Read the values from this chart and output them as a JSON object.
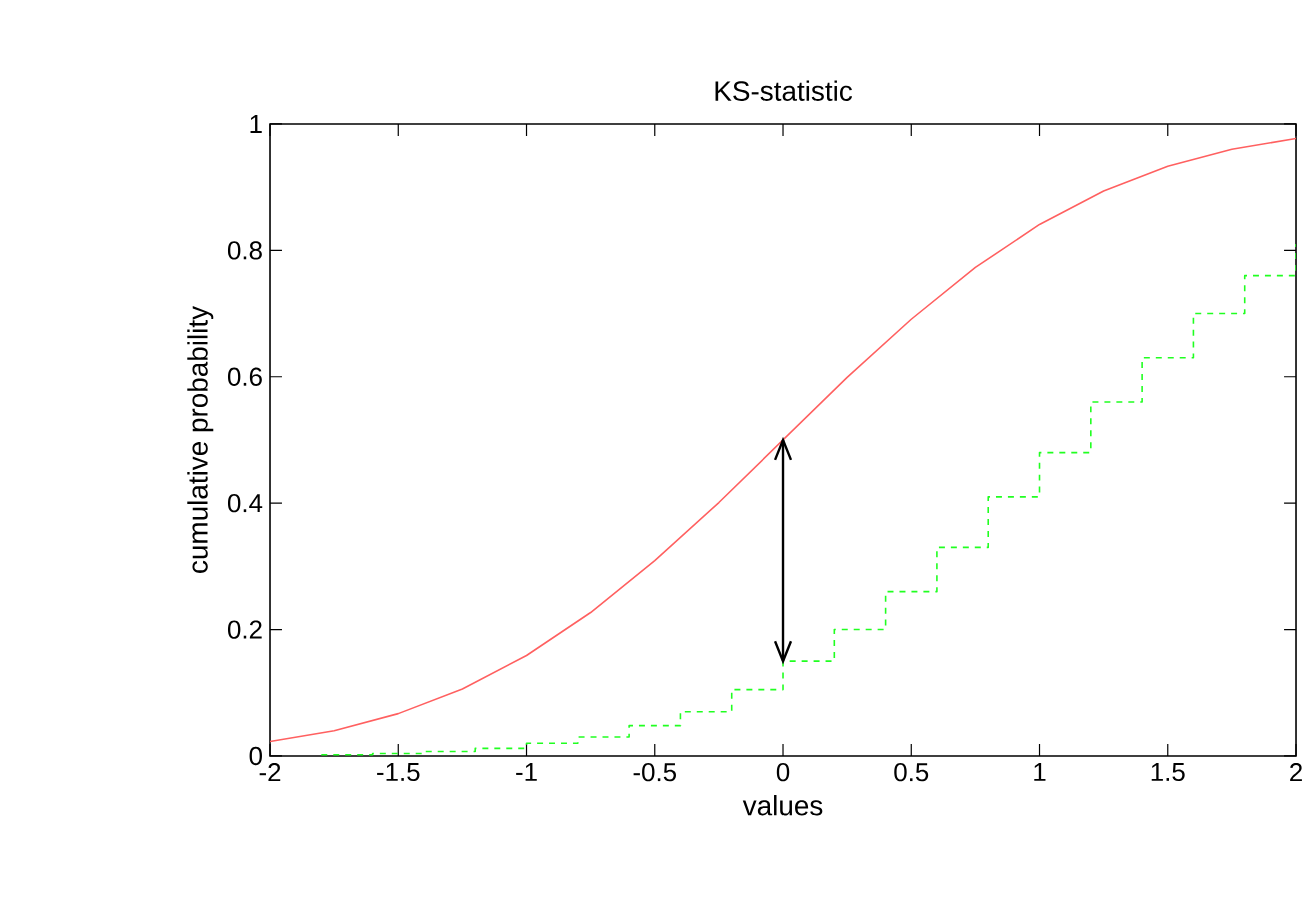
{
  "chart_data": {
    "type": "line",
    "title": "KS-statistic",
    "xlabel": "values",
    "ylabel": "cumulative probability",
    "xlim": [
      -2,
      2
    ],
    "ylim": [
      0,
      1
    ],
    "xticks": [
      -2,
      -1.5,
      -1,
      -0.5,
      0,
      0.5,
      1,
      1.5,
      2
    ],
    "yticks": [
      0,
      0.2,
      0.4,
      0.6,
      0.8,
      1
    ],
    "grid": false,
    "series": [
      {
        "type": "line",
        "color": "#ff6060",
        "line_style": "solid",
        "x": [
          -2,
          -1.75,
          -1.5,
          -1.25,
          -1,
          -0.75,
          -0.5,
          -0.25,
          0,
          0.25,
          0.5,
          0.75,
          1,
          1.25,
          1.5,
          1.75,
          2
        ],
        "values": [
          0.023,
          0.04,
          0.067,
          0.106,
          0.159,
          0.227,
          0.309,
          0.401,
          0.5,
          0.599,
          0.691,
          0.773,
          0.841,
          0.894,
          0.933,
          0.96,
          0.977
        ]
      },
      {
        "type": "step",
        "color": "#20ff20",
        "line_style": "dashed",
        "x": [
          -1.8,
          -1.6,
          -1.4,
          -1.2,
          -1,
          -0.8,
          -0.6,
          -0.4,
          -0.2,
          0,
          0.2,
          0.4,
          0.6,
          0.8,
          1,
          1.2,
          1.4,
          1.6,
          1.8,
          2
        ],
        "values": [
          0.002,
          0.004,
          0.007,
          0.012,
          0.02,
          0.03,
          0.048,
          0.07,
          0.105,
          0.15,
          0.2,
          0.26,
          0.33,
          0.41,
          0.48,
          0.56,
          0.63,
          0.7,
          0.76,
          0.81
        ]
      },
      {
        "type": "line",
        "color": "#000000",
        "line_style": "solid",
        "x": [
          0,
          0
        ],
        "values": [
          0.15,
          0.5
        ]
      }
    ]
  }
}
